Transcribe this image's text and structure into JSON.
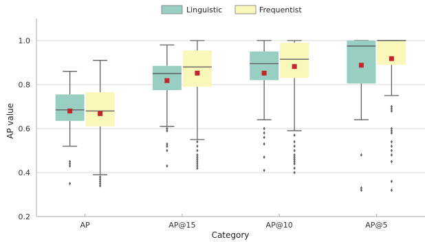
{
  "chart_data": {
    "type": "box",
    "xlabel": "Category",
    "ylabel": "AP value",
    "ylim": [
      0.2,
      1.1
    ],
    "y_ticks": [
      "0.2",
      "0.4",
      "0.6",
      "0.8",
      "1.0"
    ],
    "grid": "horizontal",
    "legend_position": "top-center",
    "categories": [
      "AP",
      "AP@15",
      "AP@10",
      "AP@5"
    ],
    "mean_marker_color": "#c0262b",
    "series": [
      {
        "name": "Linguistic",
        "color": "#99cfc2",
        "boxes": [
          {
            "whisker_low": 0.52,
            "q1": 0.635,
            "median": 0.685,
            "q3": 0.755,
            "whisker_high": 0.86,
            "mean": 0.68,
            "outliers": [
              0.35,
              0.43,
              0.44,
              0.45
            ]
          },
          {
            "whisker_low": 0.61,
            "q1": 0.775,
            "median": 0.85,
            "q3": 0.885,
            "whisker_high": 0.98,
            "mean": 0.818,
            "outliers": [
              0.43,
              0.5,
              0.52,
              0.53,
              0.59,
              0.6
            ]
          },
          {
            "whisker_low": 0.64,
            "q1": 0.82,
            "median": 0.895,
            "q3": 0.95,
            "whisker_high": 1.0,
            "mean": 0.852,
            "outliers": [
              0.41,
              0.47,
              0.53,
              0.56,
              0.58,
              0.6
            ]
          },
          {
            "whisker_low": 0.64,
            "q1": 0.805,
            "median": 0.975,
            "q3": 1.0,
            "whisker_high": 1.0,
            "mean": 0.888,
            "outliers": [
              0.32,
              0.33,
              0.48
            ]
          }
        ]
      },
      {
        "name": "Frequentist",
        "color": "#f9f7b9",
        "boxes": [
          {
            "whisker_low": 0.39,
            "q1": 0.61,
            "median": 0.68,
            "q3": 0.765,
            "whisker_high": 0.91,
            "mean": 0.668,
            "outliers": [
              0.34,
              0.35,
              0.36,
              0.37,
              0.38
            ]
          },
          {
            "whisker_low": 0.55,
            "q1": 0.79,
            "median": 0.88,
            "q3": 0.955,
            "whisker_high": 1.0,
            "mean": 0.852,
            "outliers": [
              0.42,
              0.43,
              0.44,
              0.45,
              0.46,
              0.47,
              0.48,
              0.5,
              0.52,
              0.54
            ]
          },
          {
            "whisker_low": 0.59,
            "q1": 0.83,
            "median": 0.915,
            "q3": 0.99,
            "whisker_high": 1.0,
            "mean": 0.882,
            "outliers": [
              0.4,
              0.42,
              0.44,
              0.45,
              0.46,
              0.47,
              0.48,
              0.5,
              0.52,
              0.54,
              0.57
            ]
          },
          {
            "whisker_low": 0.75,
            "q1": 0.89,
            "median": 1.0,
            "q3": 1.0,
            "whisker_high": 1.0,
            "mean": 0.918,
            "outliers": [
              0.32,
              0.36,
              0.45,
              0.48,
              0.5,
              0.52,
              0.54,
              0.58,
              0.59,
              0.6,
              0.68,
              0.69,
              0.7
            ]
          }
        ]
      }
    ]
  }
}
